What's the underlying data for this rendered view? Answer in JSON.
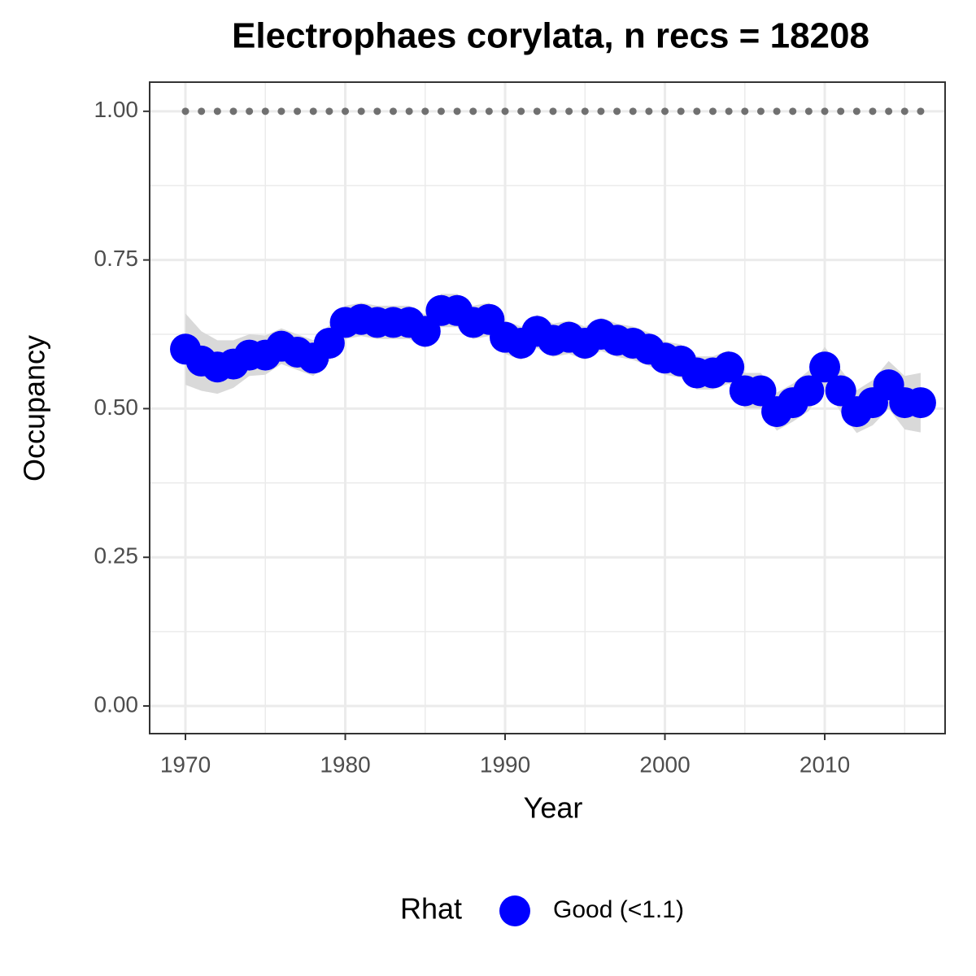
{
  "chart_data": {
    "type": "line",
    "title": "Electrophaes corylata, n recs = 18208",
    "xlabel": "Year",
    "ylabel": "Occupancy",
    "legend_title": "Rhat",
    "x": [
      1970,
      1971,
      1972,
      1973,
      1974,
      1975,
      1976,
      1977,
      1978,
      1979,
      1980,
      1981,
      1982,
      1983,
      1984,
      1985,
      1986,
      1987,
      1988,
      1989,
      1990,
      1991,
      1992,
      1993,
      1994,
      1995,
      1996,
      1997,
      1998,
      1999,
      2000,
      2001,
      2002,
      2003,
      2004,
      2005,
      2006,
      2007,
      2008,
      2009,
      2010,
      2011,
      2012,
      2013,
      2014,
      2015,
      2016
    ],
    "series": [
      {
        "name": "Good (<1.1)",
        "color": "#0000ff",
        "values": [
          0.6,
          0.58,
          0.57,
          0.575,
          0.59,
          0.59,
          0.605,
          0.595,
          0.585,
          0.61,
          0.645,
          0.65,
          0.645,
          0.645,
          0.645,
          0.63,
          0.665,
          0.665,
          0.645,
          0.65,
          0.62,
          0.61,
          0.63,
          0.615,
          0.62,
          0.61,
          0.625,
          0.615,
          0.61,
          0.6,
          0.585,
          0.58,
          0.56,
          0.56,
          0.57,
          0.53,
          0.53,
          0.495,
          0.51,
          0.53,
          0.57,
          0.53,
          0.495,
          0.51,
          0.54,
          0.51,
          0.51
        ]
      }
    ],
    "ribbon": {
      "color": "#d9d9d9",
      "upper": [
        0.66,
        0.63,
        0.615,
        0.615,
        0.625,
        0.623,
        0.635,
        0.625,
        0.615,
        0.64,
        0.673,
        0.678,
        0.673,
        0.673,
        0.673,
        0.658,
        0.693,
        0.693,
        0.673,
        0.678,
        0.648,
        0.638,
        0.658,
        0.643,
        0.648,
        0.638,
        0.653,
        0.643,
        0.638,
        0.628,
        0.613,
        0.608,
        0.588,
        0.588,
        0.598,
        0.56,
        0.56,
        0.527,
        0.542,
        0.564,
        0.604,
        0.566,
        0.531,
        0.548,
        0.58,
        0.555,
        0.56
      ],
      "lower": [
        0.54,
        0.53,
        0.525,
        0.535,
        0.555,
        0.557,
        0.575,
        0.565,
        0.555,
        0.58,
        0.617,
        0.622,
        0.617,
        0.617,
        0.617,
        0.602,
        0.637,
        0.637,
        0.617,
        0.622,
        0.592,
        0.582,
        0.602,
        0.587,
        0.592,
        0.582,
        0.597,
        0.587,
        0.582,
        0.572,
        0.557,
        0.552,
        0.532,
        0.532,
        0.542,
        0.5,
        0.5,
        0.463,
        0.478,
        0.496,
        0.536,
        0.494,
        0.459,
        0.472,
        0.5,
        0.465,
        0.46
      ]
    },
    "reference": {
      "color": "#707070",
      "values": [
        1,
        1,
        1,
        1,
        1,
        1,
        1,
        1,
        1,
        1,
        1,
        1,
        1,
        1,
        1,
        1,
        1,
        1,
        1,
        1,
        1,
        1,
        1,
        1,
        1,
        1,
        1,
        1,
        1,
        1,
        1,
        1,
        1,
        1,
        1,
        1,
        1,
        1,
        1,
        1,
        1,
        1,
        1,
        1,
        1,
        1,
        1
      ]
    },
    "xlim": [
      1967.76,
      2017.53
    ],
    "ylim": [
      -0.0465,
      1.049
    ],
    "xticks": [
      1970,
      1980,
      1990,
      2000,
      2010
    ],
    "xminor": [
      1975,
      1985,
      1995,
      2005,
      2015
    ],
    "yticks": [
      {
        "value": 0,
        "label": "0.00"
      },
      {
        "value": 0.25,
        "label": "0.25"
      },
      {
        "value": 0.5,
        "label": "0.50"
      },
      {
        "value": 0.75,
        "label": "0.75"
      },
      {
        "value": 1,
        "label": "1.00"
      }
    ],
    "yminor": [
      0.125,
      0.375,
      0.625,
      0.875
    ],
    "grid": true,
    "legend": "bottom"
  }
}
